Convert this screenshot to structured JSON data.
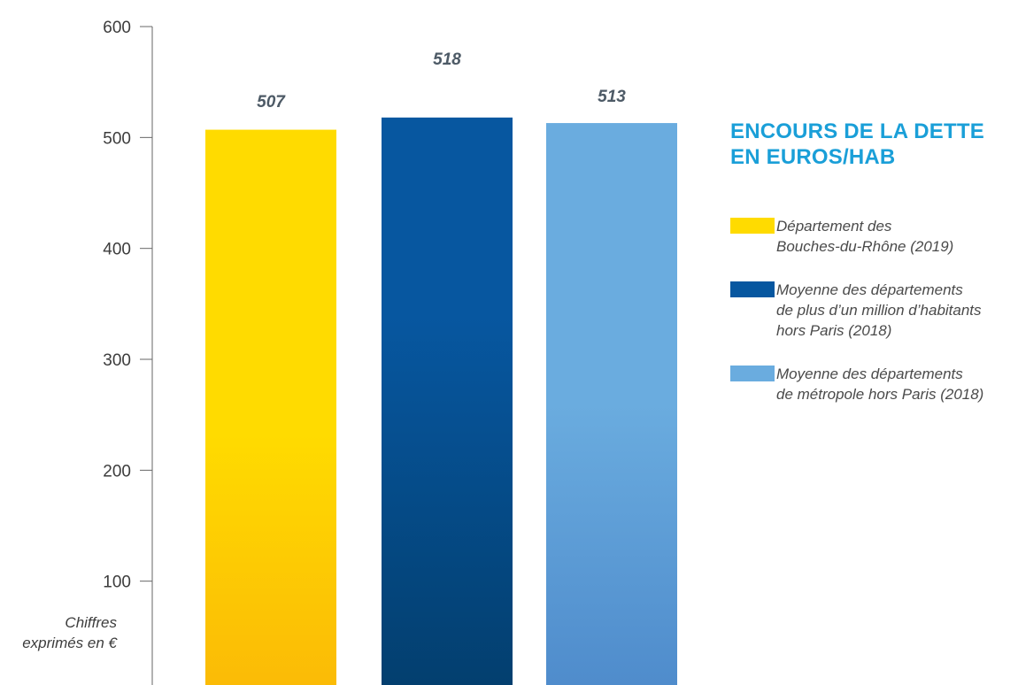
{
  "chart_data": {
    "type": "bar",
    "title": "ENCOURS DE LA DETTE EN EUROS/HAB",
    "categories": [
      "Département des Bouches-du-Rhône (2019)",
      "Moyenne des départements de plus d’un million d’habitants hors Paris (2018)",
      "Moyenne des départements de métropole hors Paris (2018)"
    ],
    "values": [
      507,
      518,
      513
    ],
    "value_labels": [
      "507",
      "518",
      "513"
    ],
    "ylim": [
      0,
      600
    ],
    "yticks": [
      100,
      200,
      300,
      400,
      500,
      600
    ],
    "ytick_labels": [
      "100",
      "200",
      "300",
      "400",
      "500",
      "600"
    ],
    "note": "Chiffres\nexprimés en €",
    "legend_position": "right",
    "grid": false
  },
  "legend": {
    "title_line1": "ENCOURS DE LA DETTE",
    "title_line2": "EN EUROS/HAB",
    "items": [
      {
        "label": "Département des\nBouches-du-Rhône (2019)",
        "color": "#ffdb00"
      },
      {
        "label": "Moyenne des départements\nde plus d’un million d’habitants\nhors Paris (2018)",
        "color": "#0757a0"
      },
      {
        "label": "Moyenne des départements\nde métropole hors Paris (2018)",
        "color": "#6aacdf"
      }
    ]
  },
  "colors": {
    "bar_1_top": "#ffdb00",
    "bar_1_bottom": "#fbbb06",
    "bar_2_top": "#0757a0",
    "bar_2_bottom": "#033f6f",
    "bar_3_top": "#6aacdf",
    "bar_3_bottom": "#4f8ccc",
    "axis": "#666666"
  }
}
